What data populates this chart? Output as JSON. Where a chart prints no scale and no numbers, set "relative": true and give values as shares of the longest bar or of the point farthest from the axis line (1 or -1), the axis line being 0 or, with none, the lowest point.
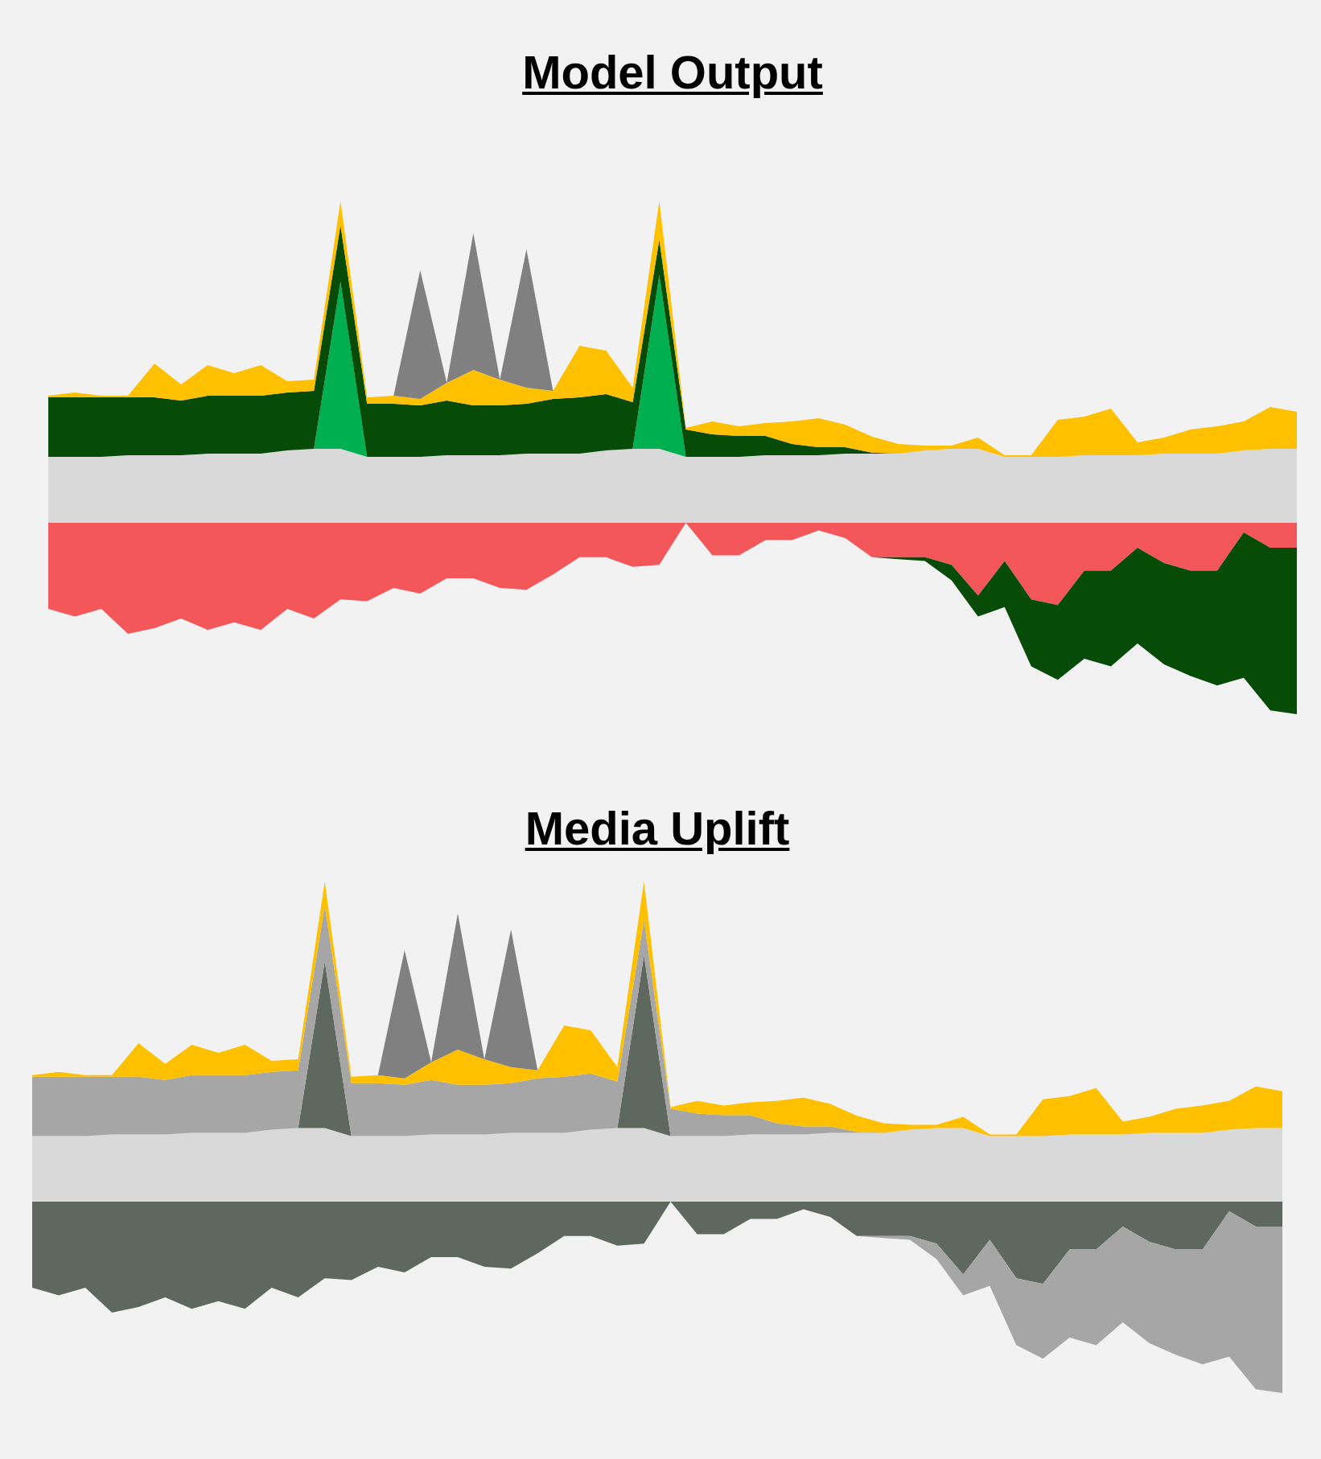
{
  "chart_data": [
    {
      "type": "area",
      "title": "Model Output",
      "relative": true,
      "stacked": true,
      "categories": [
        null,
        null,
        null,
        null,
        null,
        null,
        null,
        null,
        null,
        null,
        null,
        null,
        null,
        null,
        null,
        null,
        null,
        null,
        null,
        null,
        null,
        null,
        null,
        null,
        null,
        null,
        null,
        null,
        null,
        null,
        null,
        null,
        null,
        null,
        null,
        null,
        null,
        null,
        null,
        null,
        null,
        null,
        null,
        null,
        null,
        null,
        null,
        null
      ],
      "series": [
        {
          "color": "#d9d9d9",
          "values": [
            0.205,
            0.205,
            0.205,
            0.21,
            0.21,
            0.21,
            0.215,
            0.215,
            0.215,
            0.225,
            0.23,
            0.23,
            0.205,
            0.205,
            0.205,
            0.21,
            0.21,
            0.21,
            0.215,
            0.215,
            0.215,
            0.225,
            0.23,
            0.23,
            0.205,
            0.205,
            0.205,
            0.21,
            0.21,
            0.21,
            0.215,
            0.215,
            0.215,
            0.225,
            0.23,
            0.23,
            0.205,
            0.205,
            0.205,
            0.21,
            0.21,
            0.21,
            0.215,
            0.215,
            0.215,
            0.225,
            0.23,
            0.23
          ]
        },
        {
          "color": "#00b050",
          "values": [
            0,
            0,
            0,
            0,
            0,
            0,
            0,
            0,
            0,
            0,
            0,
            0.52,
            0,
            0,
            0,
            0,
            0,
            0,
            0,
            0,
            0,
            0,
            0,
            0.54,
            0,
            0,
            0,
            0,
            0,
            0,
            0,
            0,
            0,
            0,
            0,
            0,
            0,
            0,
            0,
            0,
            0,
            0,
            0,
            0,
            0,
            0,
            0,
            0
          ]
        },
        {
          "color": "#074b09",
          "values": [
            0.185,
            0.185,
            0.185,
            0.18,
            0.18,
            0.17,
            0.18,
            0.18,
            0.18,
            0.18,
            0.18,
            0.175,
            0.165,
            0.165,
            0.16,
            0.17,
            0.155,
            0.155,
            0.155,
            0.17,
            0.175,
            0.175,
            0.145,
            0.11,
            0.085,
            0.07,
            0.065,
            0.06,
            0.035,
            0.025,
            0.02,
            0.003,
            0,
            0,
            0,
            0,
            0,
            0,
            0,
            0,
            0,
            0,
            0,
            0,
            0,
            0,
            0,
            0
          ]
        },
        {
          "color": "#ffc000",
          "values": [
            0.005,
            0.015,
            0.005,
            0.005,
            0.105,
            0.05,
            0.095,
            0.07,
            0.095,
            0.035,
            0.035,
            0.075,
            0.02,
            0.025,
            0.02,
            0.055,
            0.11,
            0.08,
            0.05,
            0.025,
            0.16,
            0.135,
            0.045,
            0.12,
            0.005,
            0.04,
            0.03,
            0.04,
            0.07,
            0.09,
            0.07,
            0.05,
            0.03,
            0.015,
            0.01,
            0.035,
            0.005,
            0.005,
            0.115,
            0.12,
            0.145,
            0.04,
            0.05,
            0.075,
            0.085,
            0.09,
            0.13,
            0.115
          ]
        },
        {
          "color": "#808080",
          "values": [
            null,
            null,
            null,
            null,
            null,
            null,
            null,
            null,
            null,
            null,
            null,
            null,
            null,
            0,
            0.4,
            0,
            0.425,
            0,
            0.43,
            0,
            null,
            null,
            null,
            null,
            null,
            null,
            null,
            null,
            null,
            null,
            null,
            null,
            null,
            null,
            null,
            null,
            null,
            null,
            null,
            null,
            null,
            null,
            null,
            null,
            null,
            null,
            null,
            null
          ]
        }
      ]
    },
    {
      "type": "area",
      "relative": true,
      "stacked": true,
      "categories": [
        null,
        null,
        null,
        null,
        null,
        null,
        null,
        null,
        null,
        null,
        null,
        null,
        null,
        null,
        null,
        null,
        null,
        null,
        null,
        null,
        null,
        null,
        null,
        null,
        null,
        null,
        null,
        null,
        null,
        null,
        null,
        null,
        null,
        null,
        null,
        null,
        null,
        null,
        null,
        null,
        null,
        null,
        null,
        null,
        null,
        null,
        null,
        null
      ],
      "series": [
        {
          "color": "#f4575a",
          "values": [
            -0.45,
            -0.49,
            -0.45,
            -0.58,
            -0.55,
            -0.5,
            -0.56,
            -0.52,
            -0.56,
            -0.45,
            -0.5,
            -0.4,
            -0.41,
            -0.34,
            -0.37,
            -0.29,
            -0.29,
            -0.34,
            -0.35,
            -0.27,
            -0.18,
            -0.18,
            -0.23,
            -0.22,
            0,
            -0.17,
            -0.17,
            -0.09,
            -0.09,
            -0.04,
            -0.08,
            -0.18,
            -0.18,
            -0.18,
            -0.22,
            -0.38,
            -0.2,
            -0.4,
            -0.43,
            -0.25,
            -0.25,
            -0.13,
            -0.21,
            -0.25,
            -0.25,
            -0.05,
            -0.13,
            -0.13
          ]
        },
        {
          "color": "#074b09",
          "values": [
            0,
            0,
            0,
            0,
            0,
            0,
            0,
            0,
            0,
            0,
            0,
            0,
            0,
            0,
            0,
            0,
            0,
            0,
            0,
            0,
            0,
            0,
            0,
            0,
            0,
            0,
            0,
            0,
            0,
            0,
            0,
            0,
            -0.01,
            -0.02,
            -0.08,
            -0.11,
            -0.24,
            -0.35,
            -0.39,
            -0.46,
            -0.5,
            -0.5,
            -0.53,
            -0.55,
            -0.6,
            -0.76,
            -0.85,
            -0.87
          ]
        }
      ]
    },
    {
      "type": "area",
      "title": "Media Uplift",
      "relative": true,
      "stacked": true,
      "categories": [
        null,
        null,
        null,
        null,
        null,
        null,
        null,
        null,
        null,
        null,
        null,
        null,
        null,
        null,
        null,
        null,
        null,
        null,
        null,
        null,
        null,
        null,
        null,
        null,
        null,
        null,
        null,
        null,
        null,
        null,
        null,
        null,
        null,
        null,
        null,
        null,
        null,
        null,
        null,
        null,
        null,
        null,
        null,
        null,
        null,
        null,
        null,
        null
      ],
      "series": [
        {
          "color": "#d9d9d9",
          "values": [
            0.205,
            0.205,
            0.205,
            0.21,
            0.21,
            0.21,
            0.215,
            0.215,
            0.215,
            0.225,
            0.23,
            0.23,
            0.205,
            0.205,
            0.205,
            0.21,
            0.21,
            0.21,
            0.215,
            0.215,
            0.215,
            0.225,
            0.23,
            0.23,
            0.205,
            0.205,
            0.205,
            0.21,
            0.21,
            0.21,
            0.215,
            0.215,
            0.215,
            0.225,
            0.23,
            0.23,
            0.205,
            0.205,
            0.205,
            0.21,
            0.21,
            0.21,
            0.215,
            0.215,
            0.215,
            0.225,
            0.23,
            0.23
          ]
        },
        {
          "color": "#5f685f",
          "values": [
            0,
            0,
            0,
            0,
            0,
            0,
            0,
            0,
            0,
            0,
            0,
            0.52,
            0,
            0,
            0,
            0,
            0,
            0,
            0,
            0,
            0,
            0,
            0,
            0.54,
            0,
            0,
            0,
            0,
            0,
            0,
            0,
            0,
            0,
            0,
            0,
            0,
            0,
            0,
            0,
            0,
            0,
            0,
            0,
            0,
            0,
            0,
            0,
            0
          ]
        },
        {
          "color": "#a6a6a6",
          "values": [
            0.185,
            0.185,
            0.185,
            0.18,
            0.18,
            0.17,
            0.18,
            0.18,
            0.18,
            0.18,
            0.18,
            0.175,
            0.165,
            0.165,
            0.16,
            0.17,
            0.155,
            0.155,
            0.155,
            0.17,
            0.175,
            0.175,
            0.145,
            0.11,
            0.085,
            0.07,
            0.065,
            0.06,
            0.035,
            0.025,
            0.02,
            0.003,
            0,
            0,
            0,
            0,
            0,
            0,
            0,
            0,
            0,
            0,
            0,
            0,
            0,
            0,
            0,
            0
          ]
        },
        {
          "color": "#ffc000",
          "values": [
            0.005,
            0.015,
            0.005,
            0.005,
            0.105,
            0.05,
            0.095,
            0.07,
            0.095,
            0.035,
            0.035,
            0.075,
            0.02,
            0.025,
            0.02,
            0.055,
            0.11,
            0.08,
            0.05,
            0.025,
            0.16,
            0.135,
            0.045,
            0.12,
            0.005,
            0.04,
            0.03,
            0.04,
            0.07,
            0.09,
            0.07,
            0.05,
            0.03,
            0.015,
            0.01,
            0.035,
            0.005,
            0.005,
            0.115,
            0.12,
            0.145,
            0.04,
            0.05,
            0.075,
            0.085,
            0.09,
            0.13,
            0.115
          ]
        },
        {
          "color": "#808080",
          "values": [
            null,
            null,
            null,
            null,
            null,
            null,
            null,
            null,
            null,
            null,
            null,
            null,
            null,
            0,
            0.4,
            0,
            0.425,
            0,
            0.43,
            0,
            null,
            null,
            null,
            null,
            null,
            null,
            null,
            null,
            null,
            null,
            null,
            null,
            null,
            null,
            null,
            null,
            null,
            null,
            null,
            null,
            null,
            null,
            null,
            null,
            null,
            null,
            null,
            null
          ]
        }
      ]
    },
    {
      "type": "area",
      "relative": true,
      "stacked": true,
      "categories": [
        null,
        null,
        null,
        null,
        null,
        null,
        null,
        null,
        null,
        null,
        null,
        null,
        null,
        null,
        null,
        null,
        null,
        null,
        null,
        null,
        null,
        null,
        null,
        null,
        null,
        null,
        null,
        null,
        null,
        null,
        null,
        null,
        null,
        null,
        null,
        null,
        null,
        null,
        null,
        null,
        null,
        null,
        null,
        null,
        null,
        null,
        null,
        null
      ],
      "series": [
        {
          "color": "#5f685f",
          "values": [
            -0.45,
            -0.49,
            -0.45,
            -0.58,
            -0.55,
            -0.5,
            -0.56,
            -0.52,
            -0.56,
            -0.45,
            -0.5,
            -0.4,
            -0.41,
            -0.34,
            -0.37,
            -0.29,
            -0.29,
            -0.34,
            -0.35,
            -0.27,
            -0.18,
            -0.18,
            -0.23,
            -0.22,
            0,
            -0.17,
            -0.17,
            -0.09,
            -0.09,
            -0.04,
            -0.08,
            -0.18,
            -0.18,
            -0.18,
            -0.22,
            -0.38,
            -0.2,
            -0.4,
            -0.43,
            -0.25,
            -0.25,
            -0.13,
            -0.21,
            -0.25,
            -0.25,
            -0.05,
            -0.13,
            -0.13
          ]
        },
        {
          "color": "#a6a6a6",
          "values": [
            0,
            0,
            0,
            0,
            0,
            0,
            0,
            0,
            0,
            0,
            0,
            0,
            0,
            0,
            0,
            0,
            0,
            0,
            0,
            0,
            0,
            0,
            0,
            0,
            0,
            0,
            0,
            0,
            0,
            0,
            0,
            0,
            -0.01,
            -0.02,
            -0.08,
            -0.11,
            -0.24,
            -0.35,
            -0.39,
            -0.46,
            -0.5,
            -0.5,
            -0.53,
            -0.55,
            -0.6,
            -0.76,
            -0.85,
            -0.87
          ]
        }
      ]
    }
  ]
}
